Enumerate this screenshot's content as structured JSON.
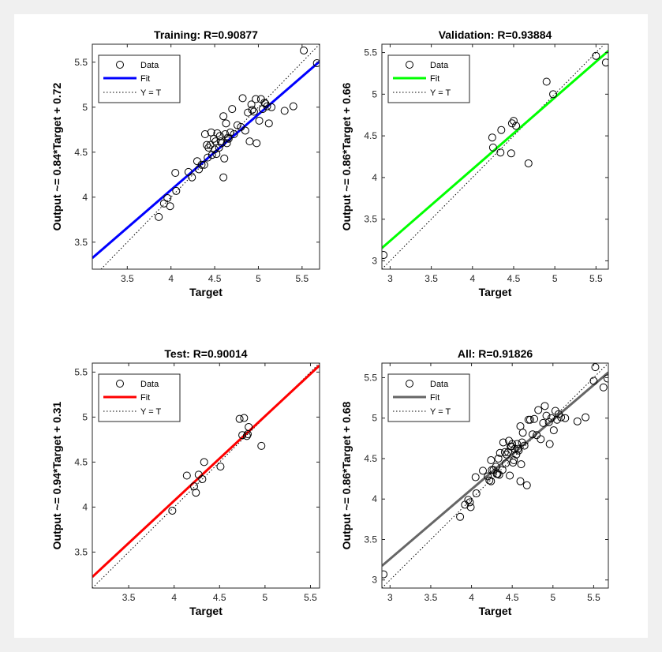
{
  "chart_data": [
    {
      "type": "scatter",
      "title": "Training: R=0.90877",
      "xlabel": "Target",
      "ylabel": "Output ~= 0.84*Target + 0.72",
      "xlim": [
        3.1,
        5.7
      ],
      "ylim": [
        3.2,
        5.7
      ],
      "xticks": [
        "3.5",
        "4",
        "4.5",
        "5",
        "5.5"
      ],
      "yticks": [
        "3.5",
        "4",
        "4.5",
        "5",
        "5.5"
      ],
      "fit": {
        "slope": 0.84,
        "intercept": 0.72,
        "color": "#0000ff"
      },
      "legend": [
        "Data",
        "Fit",
        "Y = T"
      ],
      "legend_position": "top-left",
      "points": [
        [
          3.86,
          3.78
        ],
        [
          3.92,
          3.93
        ],
        [
          3.96,
          3.99
        ],
        [
          3.99,
          3.9
        ],
        [
          4.05,
          4.27
        ],
        [
          4.06,
          4.07
        ],
        [
          4.2,
          4.28
        ],
        [
          4.24,
          4.22
        ],
        [
          4.3,
          4.4
        ],
        [
          4.32,
          4.31
        ],
        [
          4.35,
          4.36
        ],
        [
          4.38,
          4.36
        ],
        [
          4.39,
          4.7
        ],
        [
          4.41,
          4.58
        ],
        [
          4.42,
          4.44
        ],
        [
          4.43,
          4.55
        ],
        [
          4.45,
          4.58
        ],
        [
          4.46,
          4.72
        ],
        [
          4.47,
          4.47
        ],
        [
          4.49,
          4.65
        ],
        [
          4.5,
          4.53
        ],
        [
          4.51,
          4.62
        ],
        [
          4.52,
          4.48
        ],
        [
          4.53,
          4.71
        ],
        [
          4.55,
          4.55
        ],
        [
          4.56,
          4.68
        ],
        [
          4.57,
          4.62
        ],
        [
          4.58,
          4.6
        ],
        [
          4.6,
          4.22
        ],
        [
          4.6,
          4.9
        ],
        [
          4.61,
          4.43
        ],
        [
          4.62,
          4.7
        ],
        [
          4.63,
          4.82
        ],
        [
          4.64,
          4.6
        ],
        [
          4.65,
          4.66
        ],
        [
          4.66,
          4.65
        ],
        [
          4.68,
          4.72
        ],
        [
          4.7,
          4.98
        ],
        [
          4.72,
          4.7
        ],
        [
          4.76,
          4.8
        ],
        [
          4.8,
          4.78
        ],
        [
          4.82,
          5.1
        ],
        [
          4.85,
          4.74
        ],
        [
          4.88,
          4.94
        ],
        [
          4.9,
          4.62
        ],
        [
          4.92,
          5.03
        ],
        [
          4.93,
          4.97
        ],
        [
          4.95,
          4.95
        ],
        [
          4.97,
          5.09
        ],
        [
          4.98,
          4.6
        ],
        [
          5.01,
          4.85
        ],
        [
          5.03,
          5.09
        ],
        [
          5.05,
          4.98
        ],
        [
          5.07,
          5.05
        ],
        [
          5.08,
          5.04
        ],
        [
          5.1,
          5.01
        ],
        [
          5.12,
          4.82
        ],
        [
          5.15,
          5.0
        ],
        [
          5.3,
          4.96
        ],
        [
          5.4,
          5.01
        ],
        [
          5.52,
          5.63
        ],
        [
          5.67,
          5.49
        ]
      ]
    },
    {
      "type": "scatter",
      "title": "Validation: R=0.93884",
      "xlabel": "Target",
      "ylabel": "Output ~= 0.86*Target + 0.66",
      "xlim": [
        2.9,
        5.65
      ],
      "ylim": [
        2.9,
        5.6
      ],
      "xticks": [
        "3",
        "3.5",
        "4",
        "4.5",
        "5",
        "5.5"
      ],
      "yticks": [
        "3",
        "3.5",
        "4",
        "4.5",
        "5",
        "5.5"
      ],
      "fit": {
        "slope": 0.86,
        "intercept": 0.66,
        "color": "#00ff00"
      },
      "legend": [
        "Data",
        "Fit",
        "Y = T"
      ],
      "legend_position": "top-left",
      "points": [
        [
          2.92,
          3.07
        ],
        [
          4.24,
          4.48
        ],
        [
          4.25,
          4.36
        ],
        [
          4.34,
          4.3
        ],
        [
          4.35,
          4.57
        ],
        [
          4.47,
          4.29
        ],
        [
          4.48,
          4.65
        ],
        [
          4.5,
          4.68
        ],
        [
          4.53,
          4.62
        ],
        [
          4.68,
          4.17
        ],
        [
          4.9,
          5.15
        ],
        [
          4.98,
          5.0
        ],
        [
          5.5,
          5.46
        ],
        [
          5.62,
          5.38
        ]
      ]
    },
    {
      "type": "scatter",
      "title": "Test: R=0.90014",
      "xlabel": "Target",
      "ylabel": "Output ~= 0.94*Target + 0.31",
      "xlim": [
        3.1,
        5.6
      ],
      "ylim": [
        3.1,
        5.6
      ],
      "xticks": [
        "3.5",
        "4",
        "4.5",
        "5",
        "5.5"
      ],
      "yticks": [
        "3.5",
        "4",
        "4.5",
        "5",
        "5.5"
      ],
      "fit": {
        "slope": 0.94,
        "intercept": 0.31,
        "color": "#ff0000"
      },
      "legend": [
        "Data",
        "Fit",
        "Y = T"
      ],
      "legend_position": "top-left",
      "points": [
        [
          3.98,
          3.96
        ],
        [
          4.14,
          4.35
        ],
        [
          4.22,
          4.23
        ],
        [
          4.24,
          4.16
        ],
        [
          4.27,
          4.36
        ],
        [
          4.31,
          4.31
        ],
        [
          4.33,
          4.5
        ],
        [
          4.51,
          4.45
        ],
        [
          4.72,
          4.98
        ],
        [
          4.75,
          4.8
        ],
        [
          4.77,
          4.99
        ],
        [
          4.8,
          4.79
        ],
        [
          4.81,
          4.81
        ],
        [
          4.82,
          4.89
        ],
        [
          4.96,
          4.68
        ]
      ]
    },
    {
      "type": "scatter",
      "title": "All: R=0.91826",
      "xlabel": "Target",
      "ylabel": "Output ~= 0.86*Target + 0.68",
      "xlim": [
        2.9,
        5.68
      ],
      "ylim": [
        2.9,
        5.68
      ],
      "xticks": [
        "3",
        "3.5",
        "4",
        "4.5",
        "5",
        "5.5"
      ],
      "yticks": [
        "3",
        "3.5",
        "4",
        "4.5",
        "5",
        "5.5"
      ],
      "fit": {
        "slope": 0.86,
        "intercept": 0.68,
        "color": "#666666"
      },
      "legend": [
        "Data",
        "Fit",
        "Y = T"
      ],
      "legend_position": "top-left",
      "points": [
        [
          2.92,
          3.07
        ],
        [
          3.86,
          3.78
        ],
        [
          3.92,
          3.93
        ],
        [
          3.96,
          3.99
        ],
        [
          3.98,
          3.96
        ],
        [
          3.99,
          3.9
        ],
        [
          4.05,
          4.27
        ],
        [
          4.06,
          4.07
        ],
        [
          4.14,
          4.35
        ],
        [
          4.2,
          4.28
        ],
        [
          4.22,
          4.23
        ],
        [
          4.24,
          4.22
        ],
        [
          4.24,
          4.48
        ],
        [
          4.25,
          4.36
        ],
        [
          4.27,
          4.36
        ],
        [
          4.3,
          4.4
        ],
        [
          4.31,
          4.31
        ],
        [
          4.32,
          4.31
        ],
        [
          4.33,
          4.5
        ],
        [
          4.34,
          4.3
        ],
        [
          4.35,
          4.57
        ],
        [
          4.38,
          4.36
        ],
        [
          4.39,
          4.7
        ],
        [
          4.41,
          4.58
        ],
        [
          4.42,
          4.44
        ],
        [
          4.43,
          4.55
        ],
        [
          4.45,
          4.58
        ],
        [
          4.46,
          4.72
        ],
        [
          4.47,
          4.29
        ],
        [
          4.48,
          4.65
        ],
        [
          4.49,
          4.65
        ],
        [
          4.5,
          4.68
        ],
        [
          4.51,
          4.45
        ],
        [
          4.52,
          4.48
        ],
        [
          4.53,
          4.62
        ],
        [
          4.55,
          4.55
        ],
        [
          4.56,
          4.68
        ],
        [
          4.57,
          4.62
        ],
        [
          4.58,
          4.6
        ],
        [
          4.6,
          4.22
        ],
        [
          4.6,
          4.9
        ],
        [
          4.61,
          4.43
        ],
        [
          4.62,
          4.7
        ],
        [
          4.63,
          4.82
        ],
        [
          4.65,
          4.66
        ],
        [
          4.68,
          4.17
        ],
        [
          4.7,
          4.98
        ],
        [
          4.72,
          4.98
        ],
        [
          4.75,
          4.8
        ],
        [
          4.77,
          4.99
        ],
        [
          4.8,
          4.79
        ],
        [
          4.82,
          5.1
        ],
        [
          4.85,
          4.74
        ],
        [
          4.88,
          4.94
        ],
        [
          4.9,
          5.15
        ],
        [
          4.92,
          5.03
        ],
        [
          4.95,
          4.95
        ],
        [
          4.96,
          4.68
        ],
        [
          4.98,
          5.0
        ],
        [
          5.01,
          4.85
        ],
        [
          5.03,
          5.09
        ],
        [
          5.05,
          4.98
        ],
        [
          5.07,
          5.05
        ],
        [
          5.1,
          5.01
        ],
        [
          5.15,
          5.0
        ],
        [
          5.3,
          4.96
        ],
        [
          5.4,
          5.01
        ],
        [
          5.5,
          5.46
        ],
        [
          5.52,
          5.63
        ],
        [
          5.62,
          5.38
        ],
        [
          5.67,
          5.49
        ]
      ]
    }
  ]
}
